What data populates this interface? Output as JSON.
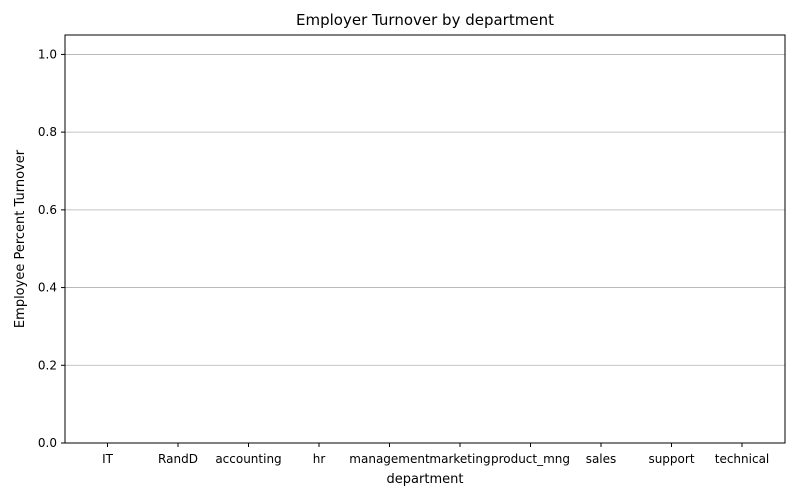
{
  "chart_data": {
    "type": "bar",
    "title": "Employer Turnover by department",
    "xlabel": "department",
    "ylabel": "Employee Percent Turnover",
    "categories": [
      "IT",
      "RandD",
      "accounting",
      "hr",
      "management",
      "marketing",
      "product_mng",
      "sales",
      "support",
      "technical"
    ],
    "values": [
      0,
      0,
      0,
      0,
      0,
      0,
      0,
      0,
      0,
      0
    ],
    "ylim": [
      0,
      1.05
    ],
    "yticks": [
      "0.0",
      "0.2",
      "0.4",
      "0.6",
      "0.8",
      "1.0"
    ],
    "grid": "horizontal",
    "colors": {
      "axis": "#000000",
      "grid": "#b0b0b0",
      "bar": "#1f77b4"
    }
  }
}
